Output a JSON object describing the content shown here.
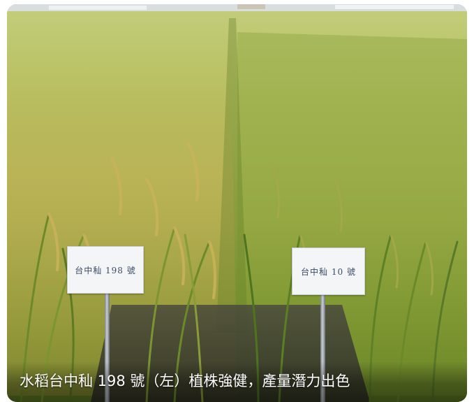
{
  "photo": {
    "sign_left_text": "台中秈 198 號",
    "sign_right_text": "台中秈 10 號",
    "caption": "水稻台中秈 198 號（左）植株強健，產量潛力出色"
  },
  "colors": {
    "field_far": "#b9c46a",
    "field_mid": "#9fb24c",
    "field_near": "#6f8a2a",
    "panicle_gold": "#c9b25a",
    "sky_strip": "#d8dde0",
    "soil": "#3b3a33"
  }
}
